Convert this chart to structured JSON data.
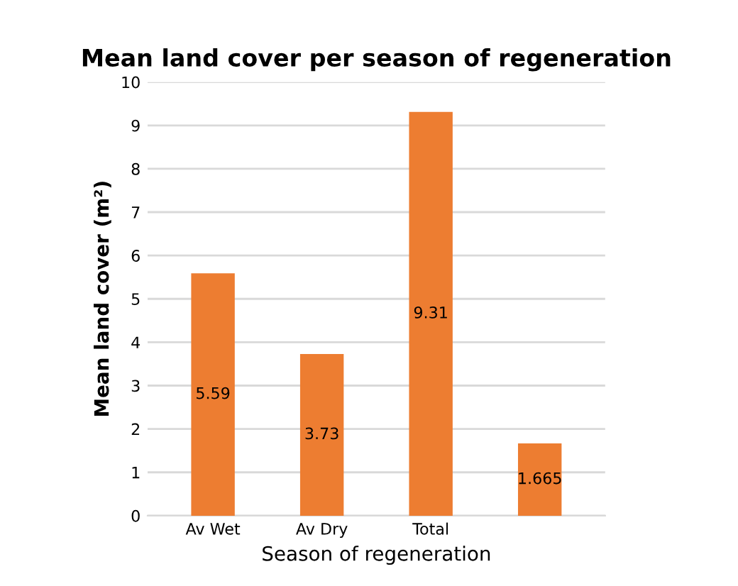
{
  "chart_data": {
    "type": "bar",
    "title": "Mean land cover per season of regeneration",
    "xlabel": "Season of regeneration",
    "ylabel": "Mean land cover (m²)",
    "categories": [
      "Av Wet",
      "Av Dry",
      "Total",
      null
    ],
    "values": [
      5.59,
      3.73,
      9.31,
      1.665
    ],
    "value_labels": [
      "5.59",
      "3.73",
      "9.31",
      "1.665"
    ],
    "color": "#ed7d31",
    "ylim": [
      0,
      10
    ],
    "yticks": [
      0,
      1,
      2,
      3,
      4,
      5,
      6,
      7,
      8,
      9,
      10
    ],
    "grid": "y"
  }
}
